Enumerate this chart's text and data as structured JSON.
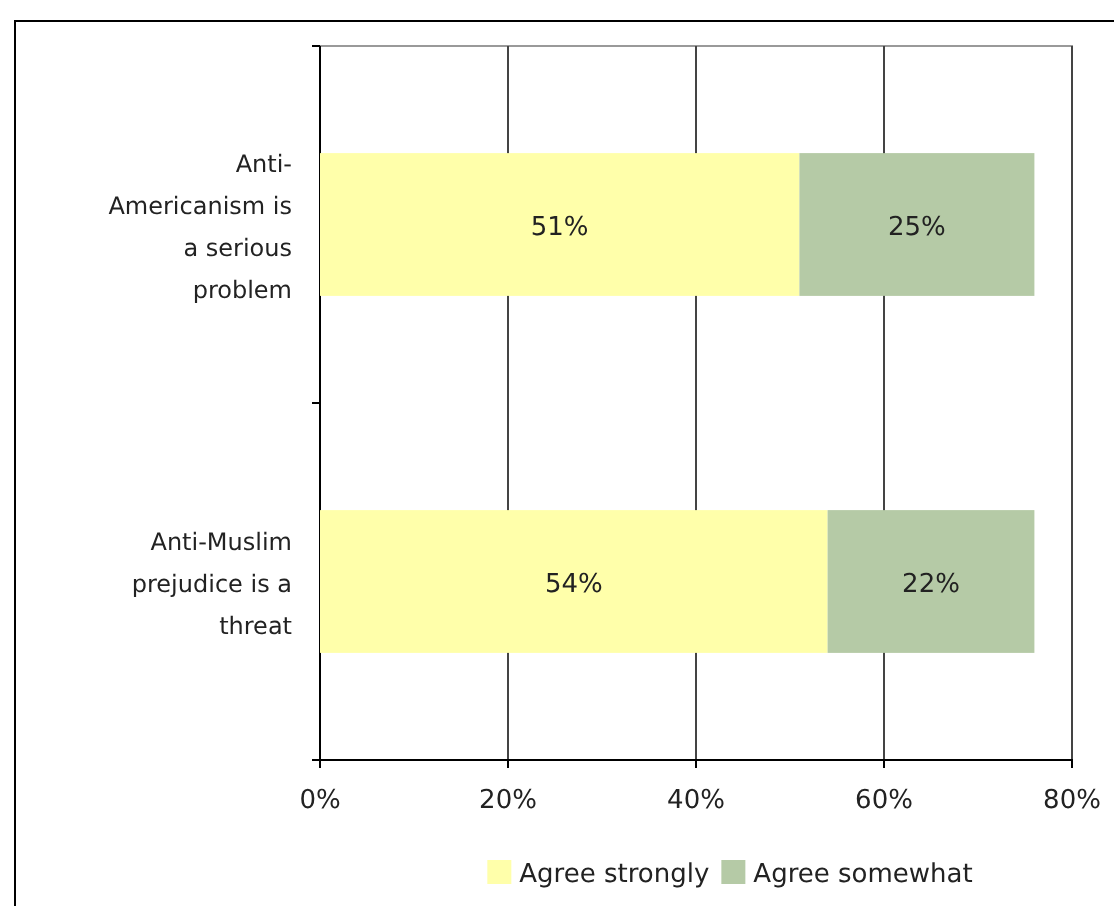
{
  "chart_data": {
    "type": "bar",
    "orientation": "horizontal",
    "stacked": true,
    "categories": [
      "Anti-Americanism is a serious problem",
      "Anti-Muslim prejudice is a threat"
    ],
    "series": [
      {
        "name": "Agree strongly",
        "color": "#ffffaa",
        "values": [
          51,
          54
        ],
        "value_labels": [
          "51%",
          "54%"
        ]
      },
      {
        "name": "Agree somewhat",
        "color": "#b5caa6",
        "values": [
          25,
          22
        ],
        "value_labels": [
          "25%",
          "22%"
        ]
      }
    ],
    "xlim": [
      0,
      80
    ],
    "xticks": [
      {
        "value": 0,
        "label": "0%"
      },
      {
        "value": 20,
        "label": "20%"
      },
      {
        "value": 40,
        "label": "40%"
      },
      {
        "value": 60,
        "label": "60%"
      },
      {
        "value": 80,
        "label": "80%"
      }
    ],
    "grid": "x",
    "legend": "bottom"
  }
}
